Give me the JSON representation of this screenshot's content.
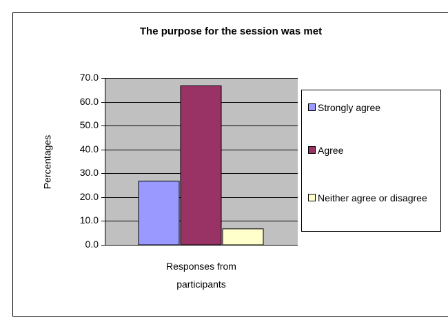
{
  "chart_data": {
    "type": "bar",
    "title": "The purpose for the session was met",
    "y_label": "Percentages",
    "categories": [
      "Responses from participants"
    ],
    "series": [
      {
        "name": "Strongly agree",
        "color": "#9999ff",
        "values": [
          26.7
        ]
      },
      {
        "name": "Agree",
        "color": "#993366",
        "values": [
          66.7
        ]
      },
      {
        "name": "Neither agree or disagree",
        "color": "#ffffcc",
        "values": [
          6.7
        ]
      }
    ],
    "ylim": [
      0,
      70
    ],
    "yticks": [
      {
        "value": 0,
        "label": "0.0"
      },
      {
        "value": 10,
        "label": "10.0"
      },
      {
        "value": 20,
        "label": "20.0"
      },
      {
        "value": 30,
        "label": "30.0"
      },
      {
        "value": 40,
        "label": "40.0"
      },
      {
        "value": 50,
        "label": "50.0"
      },
      {
        "value": 60,
        "label": "60.0"
      },
      {
        "value": 70,
        "label": "70.0"
      }
    ],
    "grid": true,
    "legend": "right"
  }
}
